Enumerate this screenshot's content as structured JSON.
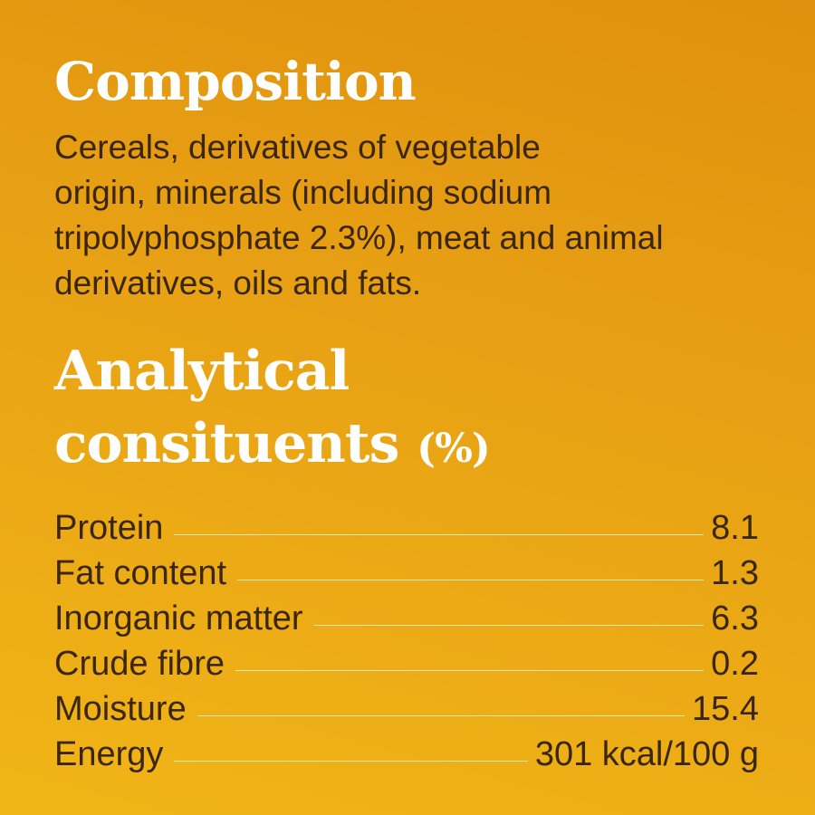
{
  "composition": {
    "title": "Composition",
    "lines": [
      "Cereals, derivatives of vegetable",
      "origin, minerals (including sodium",
      "tripolyphosphate 2.3%), meat and animal",
      "derivatives, oils and fats."
    ]
  },
  "analytical": {
    "title_lines": [
      "Analytical",
      "consituents"
    ],
    "unit": "(%)",
    "rows": [
      [
        "Protein",
        8.1
      ],
      [
        "Fat content",
        1.3
      ],
      [
        "Inorganic matter",
        6.3
      ],
      [
        "Crude fibre",
        0.2
      ],
      [
        "Moisture",
        15.4
      ],
      [
        "Energy",
        "301 kcal/100 g"
      ]
    ]
  }
}
